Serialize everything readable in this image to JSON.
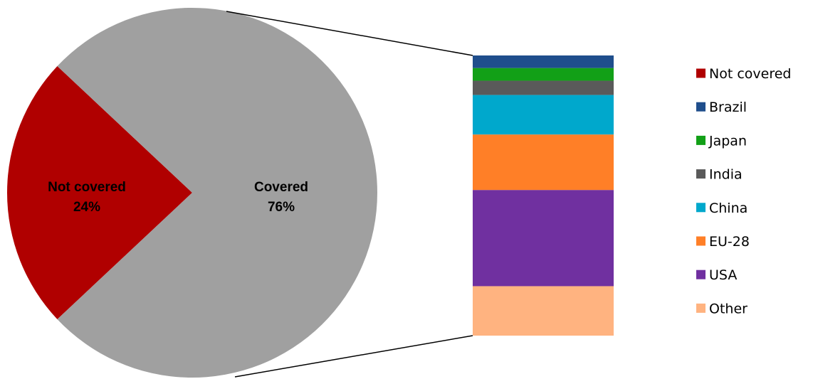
{
  "chart_data": {
    "type": "pie",
    "title": "",
    "pie": {
      "slices": [
        {
          "name": "Not covered",
          "value": 24,
          "label_line1": "Not covered",
          "label_line2": "24%",
          "color": "#b00000"
        },
        {
          "name": "Covered",
          "value": 76,
          "label_line1": "Covered",
          "label_line2": "76%",
          "color": "#a0a0a0"
        }
      ]
    },
    "breakdown_of": "Covered",
    "bar": {
      "segments_top_to_bottom": [
        {
          "name": "Brazil",
          "value": 2.3,
          "color": "#1f4e8c"
        },
        {
          "name": "Japan",
          "value": 2.3,
          "color": "#12a017"
        },
        {
          "name": "India",
          "value": 2.6,
          "color": "#5a5a5a"
        },
        {
          "name": "China",
          "value": 7.2,
          "color": "#00a8cc"
        },
        {
          "name": "EU-28",
          "value": 10.1,
          "color": "#ff7f27"
        },
        {
          "name": "USA",
          "value": 17.5,
          "color": "#7030a0"
        },
        {
          "name": "Other",
          "value": 9.0,
          "color": "#ffb380"
        }
      ]
    },
    "legend": {
      "placement": "right",
      "items": [
        {
          "label": "Not covered",
          "color": "#b00000"
        },
        {
          "label": "Brazil",
          "color": "#1f4e8c"
        },
        {
          "label": "Japan",
          "color": "#12a017"
        },
        {
          "label": "India",
          "color": "#5a5a5a"
        },
        {
          "label": "China",
          "color": "#00a8cc"
        },
        {
          "label": "EU-28",
          "color": "#ff7f27"
        },
        {
          "label": "USA",
          "color": "#7030a0"
        },
        {
          "label": "Other",
          "color": "#ffb380"
        }
      ]
    }
  }
}
